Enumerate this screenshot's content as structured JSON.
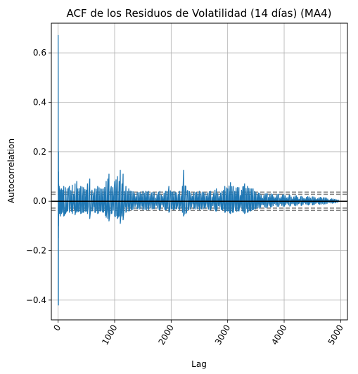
{
  "chart_data": {
    "type": "line",
    "title": "ACF de los Residuos de Volatilidad (14 días) (MA4)",
    "xlabel": "Lag",
    "ylabel": "Autocorrelation",
    "xlim": [
      -120,
      5120
    ],
    "ylim": [
      -0.48,
      0.72
    ],
    "xticks": [
      0,
      1000,
      2000,
      3000,
      4000,
      5000
    ],
    "xtick_labels": [
      "0",
      "1000",
      "2000",
      "3000",
      "4000",
      "5000"
    ],
    "yticks": [
      -0.4,
      -0.2,
      0.0,
      0.2,
      0.4,
      0.6
    ],
    "ytick_labels": [
      "−0.4",
      "−0.2",
      "0.0",
      "0.2",
      "0.4",
      "0.6"
    ],
    "grid": true,
    "confidence_bands": {
      "inner": [
        -0.028,
        0.028
      ],
      "outer": [
        -0.037,
        0.037
      ],
      "line_style": "dashed",
      "color": "#808080"
    },
    "zero_line_color": "#000000",
    "series": [
      {
        "color": "#1f77b4",
        "x": [
          0,
          2,
          4,
          6,
          8,
          10,
          15,
          20,
          30,
          40,
          60,
          80,
          100,
          130,
          160,
          200,
          250,
          300,
          330,
          350,
          400,
          450,
          500,
          520,
          560,
          600,
          650,
          700,
          750,
          800,
          850,
          880,
          900,
          940,
          1000,
          1050,
          1080,
          1100,
          1130,
          1150,
          1200,
          1250,
          1300,
          1400,
          1500,
          1600,
          1700,
          1800,
          1900,
          1960,
          2000,
          2050,
          2100,
          2150,
          2200,
          2220,
          2260,
          2300,
          2400,
          2500,
          2600,
          2700,
          2800,
          2900,
          2950,
          3000,
          3050,
          3100,
          3200,
          3280,
          3300,
          3350,
          3400,
          3450,
          3500,
          3700,
          3900,
          4100,
          4300,
          4500,
          4700,
          4900,
          4960
        ],
        "upper": [
          0.672,
          0.5,
          -0.15,
          0.2,
          0.12,
          0.07,
          0.05,
          0.06,
          0.05,
          0.045,
          0.05,
          0.045,
          0.06,
          0.055,
          0.05,
          0.06,
          0.065,
          0.07,
          0.08,
          0.05,
          0.06,
          0.055,
          0.045,
          0.07,
          0.09,
          0.045,
          0.05,
          0.06,
          0.05,
          0.05,
          0.08,
          0.09,
          0.11,
          0.06,
          0.08,
          0.1,
          0.08,
          0.125,
          0.07,
          0.11,
          0.06,
          0.05,
          0.04,
          0.035,
          0.04,
          0.04,
          0.035,
          0.04,
          0.04,
          0.06,
          0.035,
          0.04,
          0.035,
          0.04,
          0.06,
          0.125,
          0.06,
          0.04,
          0.035,
          0.04,
          0.035,
          0.04,
          0.05,
          0.04,
          0.06,
          0.05,
          0.075,
          0.06,
          0.055,
          0.06,
          0.07,
          0.06,
          0.05,
          0.05,
          0.035,
          0.03,
          0.028,
          0.025,
          0.02,
          0.018,
          0.015,
          0.008,
          0.004
        ],
        "lower": [
          0.672,
          -0.42,
          -0.42,
          -0.15,
          -0.1,
          -0.06,
          -0.05,
          -0.04,
          -0.05,
          -0.06,
          -0.05,
          -0.045,
          -0.06,
          -0.05,
          -0.04,
          -0.045,
          -0.05,
          -0.055,
          -0.045,
          -0.04,
          -0.05,
          -0.045,
          -0.04,
          -0.05,
          -0.07,
          -0.04,
          -0.045,
          -0.05,
          -0.04,
          -0.045,
          -0.065,
          -0.07,
          -0.08,
          -0.05,
          -0.06,
          -0.07,
          -0.06,
          -0.09,
          -0.06,
          -0.075,
          -0.045,
          -0.04,
          -0.035,
          -0.03,
          -0.035,
          -0.035,
          -0.03,
          -0.035,
          -0.035,
          -0.045,
          -0.03,
          -0.035,
          -0.03,
          -0.035,
          -0.045,
          -0.06,
          -0.05,
          -0.035,
          -0.03,
          -0.035,
          -0.03,
          -0.035,
          -0.04,
          -0.035,
          -0.045,
          -0.04,
          -0.05,
          -0.045,
          -0.04,
          -0.045,
          -0.05,
          -0.045,
          -0.04,
          -0.035,
          -0.03,
          -0.025,
          -0.022,
          -0.02,
          -0.017,
          -0.015,
          -0.012,
          -0.007,
          -0.004
        ]
      }
    ]
  }
}
